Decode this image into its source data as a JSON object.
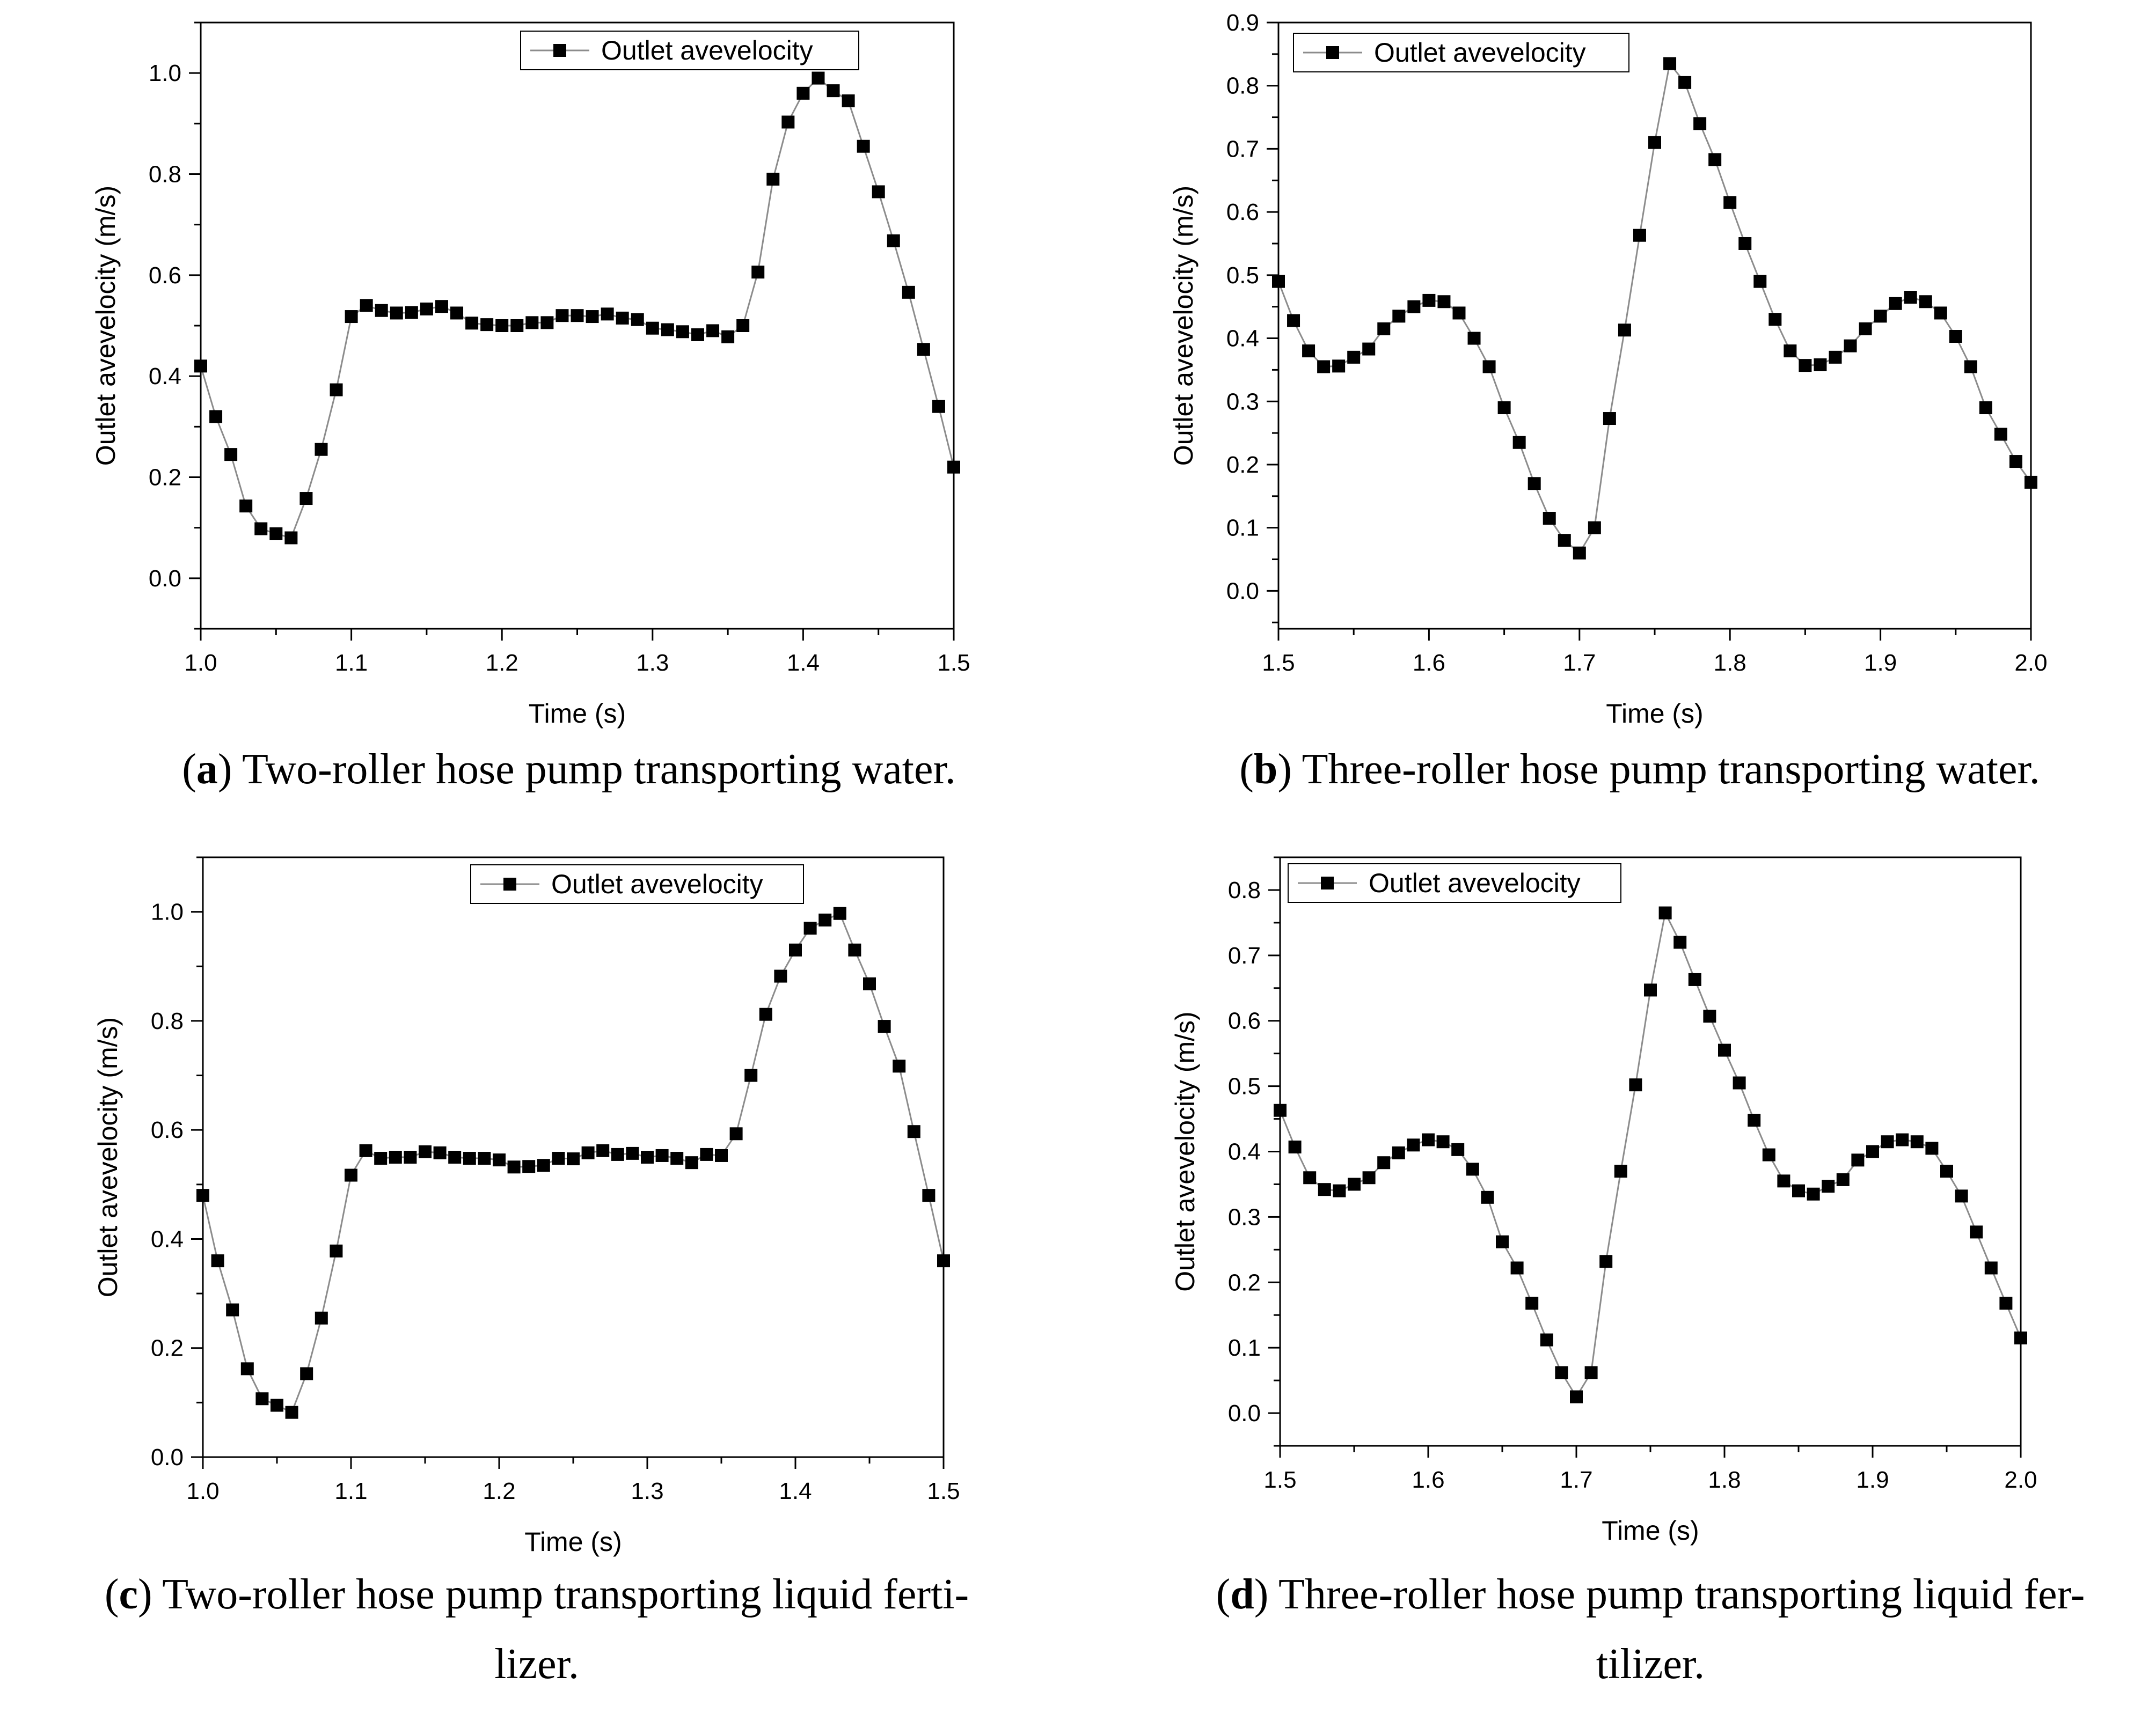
{
  "colors": {
    "line": "#8c8c8c",
    "marker": "#000000",
    "axis": "#000000",
    "background": "#ffffff"
  },
  "chart_data": [
    {
      "type": "line",
      "panel": "a",
      "caption_letter": "a",
      "caption_lines": [
        "Two-roller hose pump transporting water."
      ],
      "xlabel": "Time (s)",
      "ylabel": "Outlet avevelocity (m/s)",
      "xlim": [
        1.0,
        1.5
      ],
      "ylim": [
        -0.1,
        1.1
      ],
      "xticks": [
        1.0,
        1.1,
        1.2,
        1.3,
        1.4,
        1.5
      ],
      "xtick_labels": [
        "1.0",
        "1.1",
        "1.2",
        "1.3",
        "1.4",
        "1.5"
      ],
      "yticks": [
        0.0,
        0.2,
        0.4,
        0.6,
        0.8,
        1.0
      ],
      "ytick_labels": [
        "0.0",
        "0.2",
        "0.4",
        "0.6",
        "0.8",
        "1.0"
      ],
      "legend": {
        "label": "Outlet avevelocity",
        "position": "top-right"
      },
      "series": [
        {
          "name": "Outlet avevelocity",
          "x_start": 1.0,
          "x_step": 0.01,
          "values": [
            0.42,
            0.32,
            0.245,
            0.143,
            0.098,
            0.088,
            0.08,
            0.158,
            0.255,
            0.373,
            0.518,
            0.54,
            0.53,
            0.525,
            0.526,
            0.533,
            0.538,
            0.525,
            0.505,
            0.502,
            0.5,
            0.5,
            0.506,
            0.506,
            0.52,
            0.52,
            0.518,
            0.523,
            0.515,
            0.512,
            0.495,
            0.492,
            0.488,
            0.482,
            0.49,
            0.478,
            0.5,
            0.606,
            0.79,
            0.903,
            0.96,
            0.99,
            0.965,
            0.945,
            0.855,
            0.765,
            0.668,
            0.566,
            0.453,
            0.34,
            0.22
          ]
        }
      ]
    },
    {
      "type": "line",
      "panel": "b",
      "caption_letter": "b",
      "caption_lines": [
        "Three-roller hose pump transporting water."
      ],
      "xlabel": "Time (s)",
      "ylabel": "Outlet avevelocity (m/s)",
      "xlim": [
        1.5,
        2.0
      ],
      "ylim": [
        -0.06,
        0.9
      ],
      "xticks": [
        1.5,
        1.6,
        1.7,
        1.8,
        1.9,
        2.0
      ],
      "xtick_labels": [
        "1.5",
        "1.6",
        "1.7",
        "1.8",
        "1.9",
        "2.0"
      ],
      "yticks": [
        0.0,
        0.1,
        0.2,
        0.3,
        0.4,
        0.5,
        0.6,
        0.7,
        0.8,
        0.9
      ],
      "ytick_labels": [
        "0.0",
        "0.1",
        "0.2",
        "0.3",
        "0.4",
        "0.5",
        "0.6",
        "0.7",
        "0.8",
        "0.9"
      ],
      "legend": {
        "label": "Outlet avevelocity",
        "position": "top-left"
      },
      "series": [
        {
          "name": "Outlet avevelocity",
          "x_start": 1.5,
          "x_step": 0.01,
          "values": [
            0.49,
            0.428,
            0.38,
            0.355,
            0.356,
            0.37,
            0.383,
            0.415,
            0.435,
            0.45,
            0.46,
            0.458,
            0.44,
            0.4,
            0.355,
            0.29,
            0.235,
            0.17,
            0.115,
            0.08,
            0.06,
            0.1,
            0.273,
            0.413,
            0.563,
            0.71,
            0.835,
            0.805,
            0.74,
            0.683,
            0.615,
            0.55,
            0.49,
            0.43,
            0.38,
            0.357,
            0.358,
            0.37,
            0.388,
            0.415,
            0.435,
            0.455,
            0.465,
            0.458,
            0.44,
            0.403,
            0.355,
            0.29,
            0.248,
            0.205,
            0.172
          ]
        }
      ]
    },
    {
      "type": "line",
      "panel": "c",
      "caption_letter": "c",
      "caption_lines": [
        "Two-roller hose pump transporting liquid ferti-",
        "lizer."
      ],
      "xlabel": "Time (s)",
      "ylabel": "Outlet avevelocity (m/s)",
      "xlim": [
        1.0,
        1.5
      ],
      "ylim": [
        0.0,
        1.1
      ],
      "xticks": [
        1.0,
        1.1,
        1.2,
        1.3,
        1.4,
        1.5
      ],
      "xtick_labels": [
        "1.0",
        "1.1",
        "1.2",
        "1.3",
        "1.4",
        "1.5"
      ],
      "yticks": [
        0.0,
        0.2,
        0.4,
        0.6,
        0.8,
        1.0
      ],
      "ytick_labels": [
        "0.0",
        "0.2",
        "0.4",
        "0.6",
        "0.8",
        "1.0"
      ],
      "legend": {
        "label": "Outlet avevelocity",
        "position": "top-right"
      },
      "series": [
        {
          "name": "Outlet avevelocity",
          "x_start": 1.0,
          "x_step": 0.01,
          "values": [
            0.48,
            0.36,
            0.27,
            0.162,
            0.107,
            0.095,
            0.082,
            0.153,
            0.255,
            0.378,
            0.517,
            0.562,
            0.548,
            0.55,
            0.55,
            0.56,
            0.558,
            0.55,
            0.548,
            0.548,
            0.545,
            0.532,
            0.533,
            0.535,
            0.548,
            0.547,
            0.558,
            0.562,
            0.555,
            0.557,
            0.55,
            0.553,
            0.548,
            0.54,
            0.555,
            0.553,
            0.593,
            0.7,
            0.812,
            0.882,
            0.93,
            0.97,
            0.985,
            0.997,
            0.93,
            0.868,
            0.79,
            0.717,
            0.597,
            0.48,
            0.36
          ]
        }
      ]
    },
    {
      "type": "line",
      "panel": "d",
      "caption_letter": "d",
      "caption_lines": [
        "Three-roller hose pump transporting liquid fer-",
        "tilizer."
      ],
      "xlabel": "Time (s)",
      "ylabel": "Outlet avevelocity (m/s)",
      "xlim": [
        1.5,
        2.0
      ],
      "ylim": [
        -0.05,
        0.85
      ],
      "xticks": [
        1.5,
        1.6,
        1.7,
        1.8,
        1.9,
        2.0
      ],
      "xtick_labels": [
        "1.5",
        "1.6",
        "1.7",
        "1.8",
        "1.9",
        "2.0"
      ],
      "yticks": [
        0.0,
        0.1,
        0.2,
        0.3,
        0.4,
        0.5,
        0.6,
        0.7,
        0.8
      ],
      "ytick_labels": [
        "0.0",
        "0.1",
        "0.2",
        "0.3",
        "0.4",
        "0.5",
        "0.6",
        "0.7",
        "0.8"
      ],
      "legend": {
        "label": "Outlet avevelocity",
        "position": "top-left"
      },
      "series": [
        {
          "name": "Outlet avevelocity",
          "x_start": 1.5,
          "x_step": 0.01,
          "values": [
            0.463,
            0.407,
            0.36,
            0.342,
            0.34,
            0.35,
            0.36,
            0.383,
            0.398,
            0.41,
            0.418,
            0.415,
            0.403,
            0.373,
            0.33,
            0.262,
            0.222,
            0.168,
            0.112,
            0.062,
            0.025,
            0.062,
            0.232,
            0.37,
            0.502,
            0.647,
            0.765,
            0.72,
            0.663,
            0.607,
            0.555,
            0.505,
            0.448,
            0.395,
            0.355,
            0.34,
            0.335,
            0.347,
            0.357,
            0.387,
            0.4,
            0.415,
            0.418,
            0.415,
            0.405,
            0.37,
            0.332,
            0.277,
            0.222,
            0.168,
            0.115
          ]
        }
      ]
    }
  ]
}
